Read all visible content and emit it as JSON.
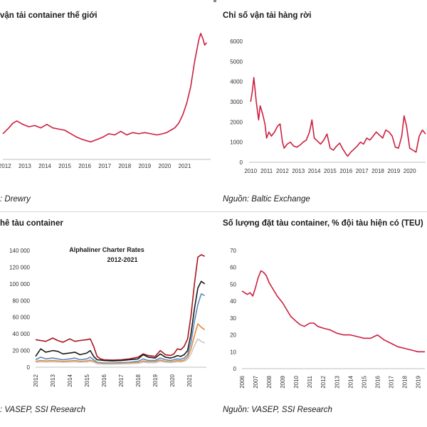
{
  "chart_data": [
    {
      "type": "line",
      "title": "vận tải container thế giới",
      "source": "Drewry",
      "x_ticks": [
        "2012",
        "2013",
        "2014",
        "2015",
        "2016",
        "2017",
        "2018",
        "2019",
        "2020",
        "2021"
      ],
      "xlim": [
        2011.9,
        2022.3
      ],
      "ylim": [
        0,
        100
      ],
      "color": "#cc1f3f",
      "series": [
        {
          "x": [
            2011.9,
            2012.2,
            2012.4,
            2012.6,
            2012.9,
            2013.2,
            2013.5,
            2013.8,
            2014.1,
            2014.4,
            2014.7,
            2015.0,
            2015.3,
            2015.6,
            2015.9,
            2016.1,
            2016.3,
            2016.6,
            2016.9,
            2017.2,
            2017.5,
            2017.8,
            2018.1,
            2018.4,
            2018.7,
            2019.0,
            2019.3,
            2019.6,
            2019.9,
            2020.1,
            2020.3,
            2020.5,
            2020.7,
            2020.9,
            2021.1,
            2021.3,
            2021.5,
            2021.7,
            2021.8,
            2021.9,
            2022.0,
            2022.1
          ],
          "values": [
            22,
            27,
            31,
            33,
            30,
            28,
            29,
            27,
            30,
            27,
            26,
            25,
            22,
            19,
            17,
            16,
            15,
            17,
            19,
            22,
            21,
            24,
            21,
            23,
            22,
            23,
            22,
            21,
            22,
            23,
            25,
            27,
            31,
            38,
            48,
            62,
            84,
            102,
            108,
            104,
            98,
            100
          ]
        }
      ]
    },
    {
      "type": "line",
      "title": "Chỉ số vận tải hàng rời",
      "source": "Baltic Exchange",
      "x_ticks": [
        "2010",
        "2011",
        "2012",
        "2013",
        "2014",
        "2015",
        "2016",
        "2017",
        "2018",
        "2019",
        "2020"
      ],
      "y_ticks": [
        "0",
        "1000",
        "2000",
        "3000",
        "4000",
        "5000",
        "6000"
      ],
      "xlim": [
        2009.9,
        2021.0
      ],
      "ylim": [
        0,
        6000
      ],
      "color": "#cc1f3f",
      "series": [
        {
          "x": [
            2010.0,
            2010.1,
            2010.2,
            2010.35,
            2010.5,
            2010.6,
            2010.75,
            2010.9,
            2011.0,
            2011.15,
            2011.3,
            2011.5,
            2011.7,
            2011.85,
            2012.0,
            2012.1,
            2012.3,
            2012.5,
            2012.7,
            2012.9,
            2013.1,
            2013.3,
            2013.5,
            2013.7,
            2013.85,
            2014.0,
            2014.2,
            2014.4,
            2014.6,
            2014.8,
            2015.0,
            2015.2,
            2015.4,
            2015.6,
            2015.8,
            2016.0,
            2016.1,
            2016.3,
            2016.5,
            2016.7,
            2016.9,
            2017.1,
            2017.3,
            2017.5,
            2017.7,
            2017.9,
            2018.1,
            2018.3,
            2018.5,
            2018.7,
            2018.9,
            2019.1,
            2019.3,
            2019.5,
            2019.65,
            2019.8,
            2020.0,
            2020.2,
            2020.4,
            2020.6,
            2020.8,
            2021.0
          ],
          "values": [
            3000,
            3500,
            4200,
            3000,
            2100,
            2800,
            2400,
            1900,
            1200,
            1500,
            1300,
            1500,
            1800,
            1900,
            1000,
            700,
            900,
            1000,
            800,
            750,
            850,
            1000,
            1100,
            1500,
            2100,
            1200,
            1050,
            900,
            1100,
            1400,
            700,
            600,
            800,
            950,
            650,
            400,
            300,
            500,
            650,
            800,
            1000,
            900,
            1200,
            1100,
            1300,
            1500,
            1350,
            1200,
            1600,
            1500,
            1300,
            750,
            700,
            1300,
            2300,
            1800,
            700,
            600,
            500,
            1300,
            1600,
            1400
          ]
        }
      ]
    },
    {
      "type": "line",
      "title": "hê tàu container",
      "source": "VASEP, SSI Research",
      "inset_title_1": "Alphaliner Charter Rates",
      "inset_title_2": "2012-2021",
      "x_ticks": [
        "2012",
        "2013",
        "2014",
        "2015",
        "2016",
        "2017",
        "2018",
        "2019",
        "2020",
        "2021"
      ],
      "y_ticks": [
        "0",
        "20 000",
        "40 000",
        "60 000",
        "80 000",
        "100 000",
        "120 000",
        "140 000"
      ],
      "xlim": [
        2012.0,
        2022.0
      ],
      "ylim": [
        0,
        140000
      ],
      "series": [
        {
          "color": "#a8141e",
          "x": [
            2012.0,
            2012.3,
            2012.6,
            2013.0,
            2013.3,
            2013.6,
            2014.0,
            2014.3,
            2014.6,
            2015.0,
            2015.2,
            2015.4,
            2015.6,
            2015.8,
            2016.0,
            2016.5,
            2017.0,
            2017.5,
            2018.0,
            2018.3,
            2018.6,
            2019.0,
            2019.3,
            2019.6,
            2019.9,
            2020.1,
            2020.3,
            2020.5,
            2020.7,
            2020.9,
            2021.1,
            2021.3,
            2021.5,
            2021.7,
            2021.9
          ],
          "values": [
            33000,
            32000,
            31000,
            35000,
            32000,
            30000,
            34000,
            31000,
            32000,
            33000,
            34000,
            25000,
            13000,
            10000,
            9000,
            8500,
            9000,
            10000,
            12000,
            16000,
            14000,
            13000,
            20000,
            15000,
            14000,
            16000,
            22000,
            21000,
            25000,
            34000,
            62000,
            100000,
            132000,
            135000,
            133000
          ]
        },
        {
          "color": "#1a1a1a",
          "x": [
            2012.0,
            2012.3,
            2012.6,
            2013.0,
            2013.3,
            2013.6,
            2014.0,
            2014.3,
            2014.6,
            2015.0,
            2015.2,
            2015.4,
            2015.6,
            2015.8,
            2016.0,
            2016.5,
            2017.0,
            2017.5,
            2018.0,
            2018.3,
            2018.6,
            2019.0,
            2019.3,
            2019.6,
            2019.9,
            2020.1,
            2020.3,
            2020.5,
            2020.7,
            2020.9,
            2021.1,
            2021.3,
            2021.5,
            2021.7,
            2021.9
          ],
          "values": [
            13000,
            22000,
            18000,
            20000,
            19000,
            16000,
            17000,
            18000,
            15000,
            17000,
            20000,
            13000,
            9000,
            8500,
            8000,
            7500,
            8000,
            9000,
            10000,
            15000,
            12000,
            11000,
            16000,
            12000,
            11000,
            12000,
            14000,
            13000,
            15000,
            20000,
            40000,
            70000,
            95000,
            103000,
            100000
          ]
        },
        {
          "color": "#5b87c2",
          "x": [
            2012.0,
            2012.3,
            2012.6,
            2013.0,
            2013.3,
            2013.6,
            2014.0,
            2014.3,
            2014.6,
            2015.0,
            2015.2,
            2015.4,
            2015.6,
            2015.8,
            2016.0,
            2016.5,
            2017.0,
            2017.5,
            2018.0,
            2018.3,
            2018.6,
            2019.0,
            2019.3,
            2019.6,
            2019.9,
            2020.1,
            2020.3,
            2020.5,
            2020.7,
            2020.9,
            2021.1,
            2021.3,
            2021.5,
            2021.7,
            2021.9
          ],
          "values": [
            9000,
            12000,
            10000,
            11000,
            10000,
            9000,
            10000,
            11000,
            9000,
            10000,
            12000,
            9000,
            6000,
            5500,
            5000,
            5000,
            5500,
            6000,
            7000,
            10000,
            8000,
            8000,
            11000,
            9000,
            8000,
            9000,
            10000,
            9500,
            11000,
            15000,
            30000,
            55000,
            75000,
            88000,
            86000
          ]
        },
        {
          "color": "#e48830",
          "x": [
            2012.0,
            2012.3,
            2012.6,
            2013.0,
            2013.3,
            2013.6,
            2014.0,
            2014.3,
            2014.6,
            2015.0,
            2015.2,
            2015.4,
            2015.6,
            2015.8,
            2016.0,
            2016.5,
            2017.0,
            2017.5,
            2018.0,
            2018.3,
            2018.6,
            2019.0,
            2019.3,
            2019.6,
            2019.9,
            2020.1,
            2020.3,
            2020.5,
            2020.7,
            2020.9,
            2021.1,
            2021.3,
            2021.5,
            2021.7,
            2021.9
          ],
          "values": [
            7000,
            8000,
            7500,
            8000,
            7500,
            7000,
            7500,
            8000,
            7000,
            7500,
            8500,
            7000,
            5000,
            4500,
            4200,
            4200,
            4500,
            5000,
            5500,
            7500,
            6500,
            6500,
            8500,
            7000,
            6500,
            7000,
            8000,
            7500,
            8500,
            12000,
            22000,
            38000,
            52000,
            48000,
            45000
          ]
        },
        {
          "color": "#c9c9c9",
          "x": [
            2012.0,
            2012.3,
            2012.6,
            2013.0,
            2013.3,
            2013.6,
            2014.0,
            2014.3,
            2014.6,
            2015.0,
            2015.2,
            2015.4,
            2015.6,
            2015.8,
            2016.0,
            2016.5,
            2017.0,
            2017.5,
            2018.0,
            2018.3,
            2018.6,
            2019.0,
            2019.3,
            2019.6,
            2019.9,
            2020.1,
            2020.3,
            2020.5,
            2020.7,
            2020.9,
            2021.1,
            2021.3,
            2021.5,
            2021.7,
            2021.9
          ],
          "values": [
            6000,
            6500,
            6200,
            6500,
            6200,
            6000,
            6200,
            6500,
            6000,
            6200,
            7000,
            6000,
            4200,
            3800,
            3600,
            3600,
            3800,
            4200,
            4600,
            6000,
            5500,
            5500,
            7000,
            6000,
            5500,
            6000,
            6500,
            6200,
            7000,
            9500,
            16000,
            26000,
            34000,
            31000,
            29000
          ]
        }
      ]
    },
    {
      "type": "line",
      "title": "Số lượng đặt tàu container, % đội tàu hiện có (TEU)",
      "source": "VASEP, SSI Research",
      "x_ticks": [
        "2006",
        "2007",
        "2008",
        "2009",
        "2010",
        "2011",
        "2012",
        "2013",
        "2014",
        "2015",
        "2016",
        "2017",
        "2018",
        "2019"
      ],
      "y_ticks": [
        "0",
        "10",
        "20",
        "30",
        "40",
        "50",
        "60",
        "70"
      ],
      "xlim": [
        2006.0,
        2019.5
      ],
      "ylim": [
        0,
        70
      ],
      "color": "#cc1f3f",
      "series": [
        {
          "x": [
            2006.0,
            2006.2,
            2006.4,
            2006.6,
            2006.8,
            2007.0,
            2007.2,
            2007.4,
            2007.6,
            2007.8,
            2008.0,
            2008.3,
            2008.6,
            2009.0,
            2009.3,
            2009.6,
            2010.0,
            2010.3,
            2010.6,
            2011.0,
            2011.3,
            2011.6,
            2012.0,
            2012.5,
            2013.0,
            2013.5,
            2014.0,
            2014.5,
            2015.0,
            2015.5,
            2016.0,
            2016.5,
            2017.0,
            2017.5,
            2018.0,
            2018.5,
            2019.0,
            2019.5
          ],
          "values": [
            46,
            45,
            44,
            45,
            43,
            48,
            54,
            58,
            57,
            55,
            51,
            47,
            43,
            39,
            35,
            31,
            28,
            26,
            25,
            27,
            27,
            25,
            24,
            23,
            21,
            20,
            20,
            19,
            18,
            18,
            20,
            17,
            15,
            13,
            12,
            11,
            10,
            10
          ]
        }
      ]
    }
  ]
}
